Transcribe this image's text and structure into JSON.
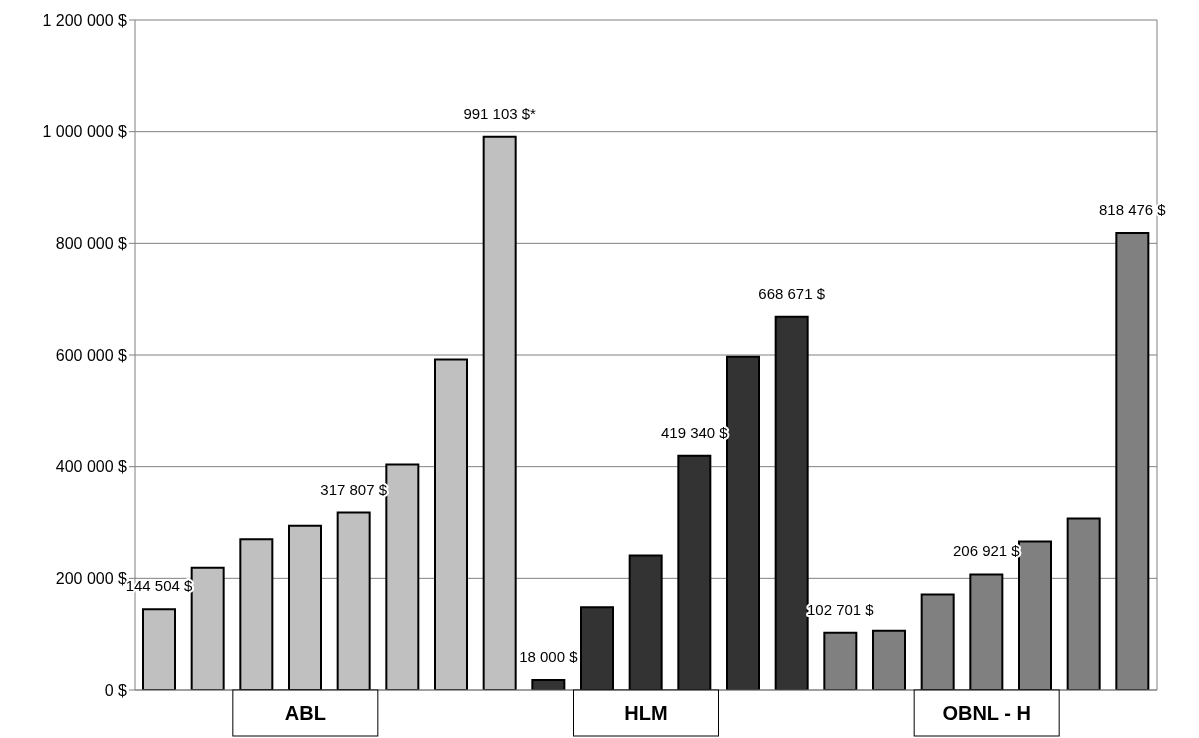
{
  "chart_data": {
    "type": "bar",
    "categories": [
      null,
      null,
      null,
      "ABL",
      null,
      null,
      null,
      null,
      null,
      null,
      "HLM",
      null,
      null,
      null,
      null,
      null,
      null,
      "OBNL - H",
      null,
      null,
      null
    ],
    "values": [
      144504,
      219000,
      270000,
      294000,
      317807,
      404000,
      592000,
      991103,
      18000,
      148000,
      241000,
      419340,
      597000,
      668671,
      102701,
      106000,
      171000,
      206921,
      266000,
      307000,
      818476
    ],
    "value_labels": [
      "144 504 $",
      null,
      null,
      null,
      "317 807 $",
      null,
      null,
      "991 103 $*",
      "18 000 $",
      null,
      null,
      "419 340 $",
      null,
      "668 671 $",
      "102 701 $",
      null,
      null,
      "206 921 $",
      null,
      null,
      "818 476 $"
    ],
    "colors": [
      "#c0c0c0",
      "#c0c0c0",
      "#c0c0c0",
      "#c0c0c0",
      "#c0c0c0",
      "#c0c0c0",
      "#c0c0c0",
      "#c0c0c0",
      "#333333",
      "#333333",
      "#333333",
      "#333333",
      "#333333",
      "#333333",
      "#808080",
      "#808080",
      "#808080",
      "#808080",
      "#808080",
      "#808080",
      "#808080"
    ],
    "ylim": [
      0,
      1200000
    ],
    "yticks": [
      {
        "value": 0,
        "label": "0 $"
      },
      {
        "value": 200000,
        "label": "200 000 $"
      },
      {
        "value": 400000,
        "label": "400 000 $"
      },
      {
        "value": 600000,
        "label": "600 000 $"
      },
      {
        "value": 800000,
        "label": "800 000 $"
      },
      {
        "value": 1000000,
        "label": "1 000 000 $"
      },
      {
        "value": 1200000,
        "label": "1 200 000 $"
      }
    ],
    "grid": "y"
  }
}
